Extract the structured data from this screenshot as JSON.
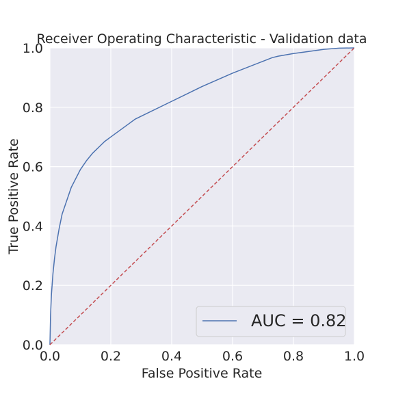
{
  "chart_data": {
    "type": "line",
    "title": "Receiver Operating Characteristic - Validation data",
    "xlabel": "False Positive Rate",
    "ylabel": "True Positive Rate",
    "xlim": [
      0.0,
      1.0
    ],
    "ylim": [
      0.0,
      1.0
    ],
    "xticks": [
      "0.0",
      "0.2",
      "0.4",
      "0.6",
      "0.8",
      "1.0"
    ],
    "yticks": [
      "0.0",
      "0.2",
      "0.4",
      "0.6",
      "0.8",
      "1.0"
    ],
    "grid": true,
    "legend_position": "lower right",
    "series": [
      {
        "name": "AUC = 0.82",
        "color": "#4c72b0",
        "style": "solid",
        "x": [
          0.0,
          0.002,
          0.005,
          0.01,
          0.015,
          0.02,
          0.03,
          0.04,
          0.05,
          0.06,
          0.07,
          0.08,
          0.09,
          0.1,
          0.12,
          0.14,
          0.16,
          0.18,
          0.2,
          0.22,
          0.24,
          0.26,
          0.28,
          0.3,
          0.4,
          0.5,
          0.6,
          0.7,
          0.73,
          0.75,
          0.8,
          0.85,
          0.9,
          0.95,
          1.0
        ],
        "y": [
          0.0,
          0.1,
          0.17,
          0.24,
          0.29,
          0.33,
          0.39,
          0.44,
          0.47,
          0.5,
          0.53,
          0.55,
          0.57,
          0.59,
          0.62,
          0.645,
          0.665,
          0.685,
          0.7,
          0.715,
          0.73,
          0.745,
          0.76,
          0.77,
          0.82,
          0.87,
          0.915,
          0.955,
          0.967,
          0.972,
          0.981,
          0.988,
          0.995,
          0.999,
          1.0
        ]
      },
      {
        "color": "#c44e52",
        "style": "dashed",
        "x": [
          0.0,
          1.0
        ],
        "y": [
          0.0,
          1.0
        ]
      }
    ]
  }
}
